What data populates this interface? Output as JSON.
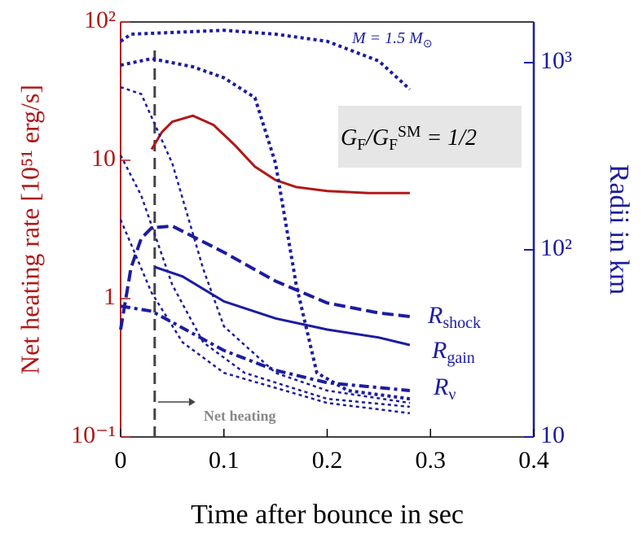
{
  "chart_data": {
    "type": "line",
    "xlabel": "Time after bounce in sec",
    "ylabel": "Net heating rate  [10⁵¹ erg/s]",
    "y2label": "Radii in km",
    "xlim": [
      0,
      0.4
    ],
    "xticks": [
      0,
      0.1,
      0.2,
      0.3,
      0.4
    ],
    "ylim": [
      0.1,
      100
    ],
    "yticks": [
      {
        "value": 0.1,
        "label": "10⁻¹"
      },
      {
        "value": 1,
        "label": "1"
      },
      {
        "value": 10,
        "label": "10"
      },
      {
        "value": 100,
        "label": "10²"
      }
    ],
    "y2lim": [
      10,
      1650
    ],
    "y2ticks": [
      {
        "value": 10,
        "label": "10"
      },
      {
        "value": 100,
        "label": "10²"
      },
      {
        "value": 1000,
        "label": "10³"
      }
    ],
    "ylog": true,
    "y2log": true,
    "ycolor": "#b01818",
    "y2color": "#1c1ca0",
    "vline": 0.033,
    "annotations": [
      {
        "runs": [
          {
            "text": "M = 1.5 M"
          },
          {
            "text": "⊙",
            "shift": "sub"
          }
        ]
      },
      {
        "runs": [
          {
            "text": "G"
          },
          {
            "text": "F",
            "shift": "sub"
          },
          {
            "text": "/G"
          },
          {
            "text": "F",
            "shift": "sub"
          },
          {
            "text": "SM",
            "shift": "sup"
          },
          {
            "text": " = 1/2"
          }
        ]
      },
      {
        "runs": [
          {
            "text": "Net heating"
          }
        ]
      }
    ],
    "series": [
      {
        "axis": "y",
        "color": "#b01818",
        "style": "solid",
        "x": [
          0.03,
          0.04,
          0.05,
          0.07,
          0.09,
          0.11,
          0.13,
          0.15,
          0.17,
          0.2,
          0.24,
          0.28
        ],
        "values": [
          12,
          16,
          19,
          21,
          18,
          13,
          9,
          7.2,
          6.4,
          6,
          5.8,
          5.8
        ]
      },
      {
        "axis": "y2",
        "color": "#1c1ca0",
        "style": "dashed",
        "label": {
          "text": "R",
          "sub": "shock"
        },
        "x": [
          0,
          0.01,
          0.02,
          0.03,
          0.05,
          0.1,
          0.15,
          0.2,
          0.25,
          0.28
        ],
        "values": [
          37.5,
          80,
          115,
          131,
          134,
          97,
          68,
          52,
          46,
          44
        ]
      },
      {
        "axis": "y2",
        "color": "#1c1ca0",
        "style": "solid",
        "label": {
          "text": "R",
          "sub": "gain"
        },
        "x": [
          0.033,
          0.06,
          0.1,
          0.15,
          0.2,
          0.25,
          0.28
        ],
        "values": [
          81,
          72,
          53,
          43,
          37.5,
          34,
          31
        ]
      },
      {
        "axis": "y2",
        "color": "#1c1ca0",
        "style": "dashdot",
        "label": {
          "text": "R",
          "sub": "ν"
        },
        "x": [
          0,
          0.03,
          0.05,
          0.1,
          0.15,
          0.2,
          0.28
        ],
        "values": [
          50,
          47,
          41,
          29,
          22.7,
          19.5,
          17.7
        ]
      },
      {
        "axis": "y2",
        "color": "#1c1ca0",
        "style": "dotted",
        "x": [
          0,
          0.01,
          0.05,
          0.1,
          0.15,
          0.2,
          0.25,
          0.28
        ],
        "values": [
          1300,
          1420,
          1450,
          1490,
          1420,
          1300,
          1020,
          720
        ]
      },
      {
        "axis": "y2",
        "color": "#1c1ca0",
        "style": "dotted",
        "x": [
          0,
          0.03,
          0.07,
          0.1,
          0.13,
          0.15,
          0.17,
          0.19,
          0.22,
          0.28
        ],
        "values": [
          970,
          1050,
          950,
          830,
          650,
          290,
          65,
          22,
          17.7,
          16
        ]
      },
      {
        "axis": "y2",
        "color": "#1c1ca0",
        "style": "dotted",
        "x": [
          0,
          0.02,
          0.05,
          0.08,
          0.1,
          0.15,
          0.2,
          0.28
        ],
        "values": [
          740,
          680,
          290,
          79,
          39,
          22,
          17.7,
          15.2
        ]
      },
      {
        "axis": "y2",
        "color": "#1c1ca0",
        "style": "dotted",
        "x": [
          0,
          0.02,
          0.05,
          0.08,
          0.12,
          0.2,
          0.28
        ],
        "values": [
          320,
          195,
          65,
          32,
          22,
          16,
          14.5
        ]
      },
      {
        "axis": "y2",
        "color": "#1c1ca0",
        "style": "dotted",
        "x": [
          0,
          0.03,
          0.06,
          0.1,
          0.2,
          0.28
        ],
        "values": [
          145,
          59,
          32,
          22,
          15.2,
          13.4
        ]
      }
    ]
  }
}
